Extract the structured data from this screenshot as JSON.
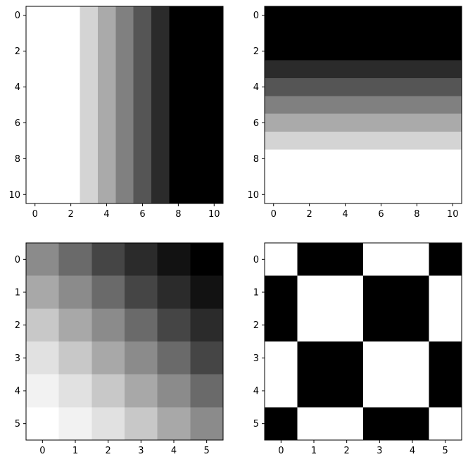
{
  "chart_data": [
    {
      "type": "heatmap",
      "colormap": "gray",
      "interpolation": "nearest",
      "grid": false,
      "vmin": 0,
      "vmax": 1,
      "xticks": [
        0,
        2,
        4,
        6,
        8,
        10
      ],
      "yticks": [
        0,
        2,
        4,
        6,
        8,
        10
      ],
      "xlim": [
        -0.5,
        10.5
      ],
      "ylim": [
        10.5,
        -0.5
      ],
      "values": [
        [
          1,
          1,
          1,
          0.8333,
          0.6667,
          0.5,
          0.3333,
          0.1667,
          0,
          0,
          0
        ],
        [
          1,
          1,
          1,
          0.8333,
          0.6667,
          0.5,
          0.3333,
          0.1667,
          0,
          0,
          0
        ],
        [
          1,
          1,
          1,
          0.8333,
          0.6667,
          0.5,
          0.3333,
          0.1667,
          0,
          0,
          0
        ],
        [
          1,
          1,
          1,
          0.8333,
          0.6667,
          0.5,
          0.3333,
          0.1667,
          0,
          0,
          0
        ],
        [
          1,
          1,
          1,
          0.8333,
          0.6667,
          0.5,
          0.3333,
          0.1667,
          0,
          0,
          0
        ],
        [
          1,
          1,
          1,
          0.8333,
          0.6667,
          0.5,
          0.3333,
          0.1667,
          0,
          0,
          0
        ],
        [
          1,
          1,
          1,
          0.8333,
          0.6667,
          0.5,
          0.3333,
          0.1667,
          0,
          0,
          0
        ],
        [
          1,
          1,
          1,
          0.8333,
          0.6667,
          0.5,
          0.3333,
          0.1667,
          0,
          0,
          0
        ],
        [
          1,
          1,
          1,
          0.8333,
          0.6667,
          0.5,
          0.3333,
          0.1667,
          0,
          0,
          0
        ],
        [
          1,
          1,
          1,
          0.8333,
          0.6667,
          0.5,
          0.3333,
          0.1667,
          0,
          0,
          0
        ],
        [
          1,
          1,
          1,
          0.8333,
          0.6667,
          0.5,
          0.3333,
          0.1667,
          0,
          0,
          0
        ]
      ]
    },
    {
      "type": "heatmap",
      "colormap": "gray",
      "interpolation": "nearest",
      "grid": false,
      "vmin": 0,
      "vmax": 1,
      "xticks": [
        0,
        2,
        4,
        6,
        8,
        10
      ],
      "yticks": [
        0,
        2,
        4,
        6,
        8,
        10
      ],
      "xlim": [
        -0.5,
        10.5
      ],
      "ylim": [
        10.5,
        -0.5
      ],
      "values": [
        [
          0,
          0,
          0,
          0,
          0,
          0,
          0,
          0,
          0,
          0,
          0
        ],
        [
          0,
          0,
          0,
          0,
          0,
          0,
          0,
          0,
          0,
          0,
          0
        ],
        [
          0,
          0,
          0,
          0,
          0,
          0,
          0,
          0,
          0,
          0,
          0
        ],
        [
          0.1667,
          0.1667,
          0.1667,
          0.1667,
          0.1667,
          0.1667,
          0.1667,
          0.1667,
          0.1667,
          0.1667,
          0.1667
        ],
        [
          0.3333,
          0.3333,
          0.3333,
          0.3333,
          0.3333,
          0.3333,
          0.3333,
          0.3333,
          0.3333,
          0.3333,
          0.3333
        ],
        [
          0.5,
          0.5,
          0.5,
          0.5,
          0.5,
          0.5,
          0.5,
          0.5,
          0.5,
          0.5,
          0.5
        ],
        [
          0.6667,
          0.6667,
          0.6667,
          0.6667,
          0.6667,
          0.6667,
          0.6667,
          0.6667,
          0.6667,
          0.6667,
          0.6667
        ],
        [
          0.8333,
          0.8333,
          0.8333,
          0.8333,
          0.8333,
          0.8333,
          0.8333,
          0.8333,
          0.8333,
          0.8333,
          0.8333
        ],
        [
          1,
          1,
          1,
          1,
          1,
          1,
          1,
          1,
          1,
          1,
          1
        ],
        [
          1,
          1,
          1,
          1,
          1,
          1,
          1,
          1,
          1,
          1,
          1
        ],
        [
          1,
          1,
          1,
          1,
          1,
          1,
          1,
          1,
          1,
          1,
          1
        ]
      ]
    },
    {
      "type": "heatmap",
      "colormap": "gray",
      "interpolation": "nearest",
      "grid": false,
      "vmin": 0,
      "vmax": 1,
      "xticks": [
        0,
        1,
        2,
        3,
        4,
        5
      ],
      "yticks": [
        0,
        1,
        2,
        3,
        4,
        5
      ],
      "xlim": [
        -0.5,
        5.5
      ],
      "ylim": [
        5.5,
        -0.5
      ],
      "values": [
        [
          0.5451,
          0.4157,
          0.2706,
          0.1686,
          0.0706,
          0.0
        ],
        [
          0.6588,
          0.5451,
          0.4157,
          0.2706,
          0.1686,
          0.0706
        ],
        [
          0.7843,
          0.6588,
          0.5451,
          0.4157,
          0.2706,
          0.1686
        ],
        [
          0.8824,
          0.7843,
          0.6588,
          0.5451,
          0.4157,
          0.2706
        ],
        [
          0.949,
          0.8824,
          0.7843,
          0.6588,
          0.5451,
          0.4157
        ],
        [
          1.0,
          0.949,
          0.8824,
          0.7843,
          0.6588,
          0.5451
        ]
      ]
    },
    {
      "type": "heatmap",
      "colormap": "gray",
      "interpolation": "nearest",
      "grid": false,
      "vmin": 0,
      "vmax": 1,
      "xticks": [
        0,
        1,
        2,
        3,
        4,
        5
      ],
      "yticks": [
        0,
        1,
        2,
        3,
        4,
        5
      ],
      "xlim": [
        -0.5,
        5.5
      ],
      "ylim": [
        5.5,
        -0.5
      ],
      "values": [
        [
          1,
          0,
          0,
          1,
          1,
          0
        ],
        [
          0,
          1,
          1,
          0,
          0,
          1
        ],
        [
          0,
          1,
          1,
          0,
          0,
          1
        ],
        [
          1,
          0,
          0,
          1,
          1,
          0
        ],
        [
          1,
          0,
          0,
          1,
          1,
          0
        ],
        [
          0,
          1,
          1,
          0,
          0,
          1
        ]
      ]
    }
  ]
}
